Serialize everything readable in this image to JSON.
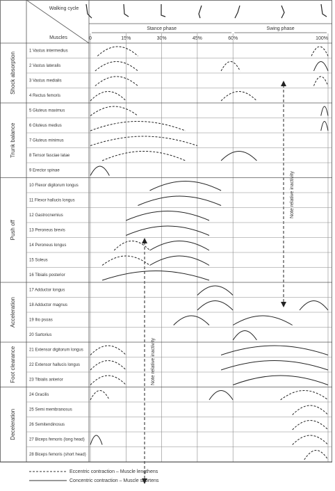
{
  "header": {
    "walking_cycle": "Walking cycle",
    "muscles": "Muscles",
    "phases": [
      {
        "label": "Stance phase",
        "from": 0,
        "to": 60
      },
      {
        "label": "Swing phase",
        "from": 60,
        "to": 100
      }
    ]
  },
  "axis": {
    "xlim": [
      0,
      100
    ],
    "ticks": [
      0,
      {
        "value": 15,
        "label": "15%"
      },
      {
        "value": 30,
        "label": "30%"
      },
      {
        "value": 45,
        "label": "45%"
      },
      {
        "value": 60,
        "label": "60%"
      },
      {
        "value": 100,
        "label": "100%"
      }
    ]
  },
  "groups": [
    {
      "name": "Shock absorption",
      "muscles": [
        {
          "label": "1 Vastus intermedius",
          "bursts": [
            {
              "from": 3,
              "to": 20,
              "style": "dashed"
            },
            {
              "from": 93,
              "to": 100,
              "style": "dashed"
            }
          ]
        },
        {
          "label": "2 Vastus lateralis",
          "bursts": [
            {
              "from": 2,
              "to": 20,
              "style": "dashed"
            },
            {
              "from": 55,
              "to": 63,
              "style": "dashed"
            },
            {
              "from": 94,
              "to": 100,
              "style": "solid"
            }
          ]
        },
        {
          "label": "3 Vastus medialis",
          "bursts": [
            {
              "from": 2,
              "to": 20,
              "style": "dashed"
            },
            {
              "from": 94,
              "to": 100,
              "style": "dashed"
            }
          ]
        },
        {
          "label": "4 Rectus femoris",
          "bursts": [
            {
              "from": 0,
              "to": 15,
              "style": "dashed"
            },
            {
              "from": 55,
              "to": 70,
              "style": "dashed"
            }
          ]
        }
      ]
    },
    {
      "name": "Trunk balance",
      "muscles": [
        {
          "label": "5 Gluteus maximus",
          "bursts": [
            {
              "from": 0,
              "to": 20,
              "style": "dashed"
            },
            {
              "from": 97,
              "to": 100,
              "style": "solid"
            }
          ]
        },
        {
          "label": "6 Gluteus medius",
          "bursts": [
            {
              "from": 0,
              "to": 40,
              "style": "dashed"
            },
            {
              "from": 97,
              "to": 100,
              "style": "solid"
            }
          ]
        },
        {
          "label": "7 Gluteus minimus",
          "bursts": [
            {
              "from": 0,
              "to": 45,
              "style": "dashed"
            }
          ]
        },
        {
          "label": "8 Tensor fasciae latae",
          "bursts": [
            {
              "from": 5,
              "to": 40,
              "style": "dashed"
            },
            {
              "from": 55,
              "to": 70,
              "style": "solid"
            }
          ]
        },
        {
          "label": "9 Erector spinae",
          "bursts": [
            {
              "from": 0,
              "to": 8,
              "style": "solid"
            }
          ]
        }
      ]
    },
    {
      "name": "Push off",
      "muscles": [
        {
          "label": "10 Flexor digitorum longus",
          "bursts": [
            {
              "from": 25,
              "to": 55,
              "style": "solid"
            }
          ]
        },
        {
          "label": "11 Flexor hallucis longus",
          "bursts": [
            {
              "from": 20,
              "to": 55,
              "style": "solid"
            }
          ]
        },
        {
          "label": "12 Gastrocnemius",
          "bursts": [
            {
              "from": 15,
              "to": 50,
              "style": "solid"
            }
          ]
        },
        {
          "label": "13 Peroneus brevis",
          "bursts": [
            {
              "from": 15,
              "to": 50,
              "style": "solid"
            }
          ]
        },
        {
          "label": "14 Peroneus longus",
          "bursts": [
            {
              "from": 10,
              "to": 25,
              "style": "dashed"
            },
            {
              "from": 25,
              "to": 50,
              "style": "solid"
            }
          ]
        },
        {
          "label": "15 Soleus",
          "bursts": [
            {
              "from": 5,
              "to": 25,
              "style": "dashed"
            },
            {
              "from": 25,
              "to": 50,
              "style": "solid"
            }
          ]
        },
        {
          "label": "16 Tibialis posterior",
          "bursts": [
            {
              "from": 5,
              "to": 50,
              "style": "solid"
            }
          ]
        }
      ]
    },
    {
      "name": "Acceleration",
      "muscles": [
        {
          "label": "17 Adductor longus",
          "bursts": [
            {
              "from": 45,
              "to": 60,
              "style": "solid"
            }
          ]
        },
        {
          "label": "18 Adductor magnus",
          "bursts": [
            {
              "from": 45,
              "to": 60,
              "style": "solid"
            },
            {
              "from": 88,
              "to": 100,
              "style": "solid"
            }
          ]
        },
        {
          "label": "19 Ilio psoas",
          "bursts": [
            {
              "from": 35,
              "to": 50,
              "style": "solid"
            },
            {
              "from": 60,
              "to": 85,
              "style": "solid"
            }
          ]
        },
        {
          "label": "20 Sartorius",
          "bursts": [
            {
              "from": 60,
              "to": 70,
              "style": "solid"
            }
          ]
        }
      ]
    },
    {
      "name": "Foot clearance",
      "muscles": [
        {
          "label": "21 Extensor digitorum longus",
          "bursts": [
            {
              "from": 0,
              "to": 15,
              "style": "dashed"
            },
            {
              "from": 55,
              "to": 100,
              "style": "solid"
            }
          ]
        },
        {
          "label": "22 Extensor hallucis longus",
          "bursts": [
            {
              "from": 0,
              "to": 15,
              "style": "dashed"
            },
            {
              "from": 55,
              "to": 100,
              "style": "solid"
            }
          ]
        },
        {
          "label": "23 Tibialis anterior",
          "bursts": [
            {
              "from": 0,
              "to": 15,
              "style": "dashed"
            },
            {
              "from": 60,
              "to": 100,
              "style": "solid"
            }
          ]
        }
      ]
    },
    {
      "name": "Deceleration",
      "muscles": [
        {
          "label": "24 Gracilis",
          "bursts": [
            {
              "from": 0,
              "to": 8,
              "style": "dashed"
            },
            {
              "from": 50,
              "to": 60,
              "style": "solid"
            },
            {
              "from": 80,
              "to": 100,
              "style": "dashed"
            }
          ]
        },
        {
          "label": "25 Semi membranosus",
          "bursts": [
            {
              "from": 85,
              "to": 100,
              "style": "dashed"
            }
          ]
        },
        {
          "label": "26 Semitendinosus",
          "bursts": [
            {
              "from": 85,
              "to": 100,
              "style": "dashed"
            }
          ]
        },
        {
          "label": "27 Biceps femoris (long head)",
          "bursts": [
            {
              "from": 0,
              "to": 5,
              "style": "solid"
            },
            {
              "from": 85,
              "to": 100,
              "style": "dashed"
            }
          ]
        },
        {
          "label": "28 Biceps femoris (short head)",
          "bursts": [
            {
              "from": 90,
              "to": 100,
              "style": "dashed"
            }
          ]
        }
      ]
    }
  ],
  "notes": [
    "Note relative inactivity",
    "Note relative inactivity"
  ],
  "legend": [
    {
      "label": "Eccentric contraction – Muscle lengthens",
      "style": "dashed"
    },
    {
      "label": "Concentric contraction – Muscle shortens",
      "style": "solid"
    }
  ]
}
